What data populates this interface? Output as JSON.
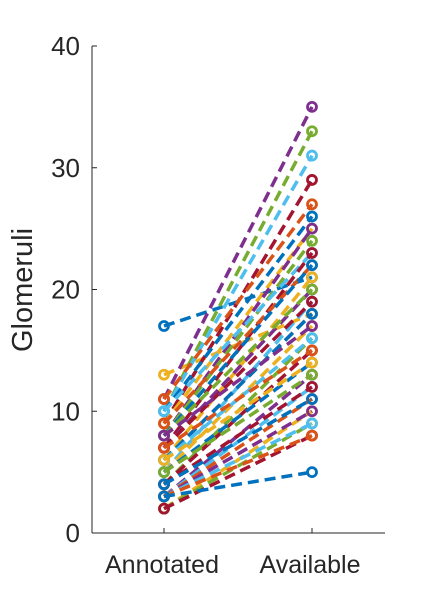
{
  "chart_data": {
    "type": "line",
    "categories": [
      "Annotated",
      "Available"
    ],
    "ylabel": "Glomeruli",
    "xlabel": "",
    "ylim": [
      0,
      40
    ],
    "yticks": [
      0,
      10,
      20,
      30,
      40
    ],
    "grid": false,
    "line_style": "dashed",
    "marker": "circle",
    "colors": [
      "#0072BD",
      "#EDB120",
      "#7E2F8E",
      "#77AC30",
      "#4DBEEE",
      "#A2142F",
      "#D95319"
    ],
    "pairs": [
      [
        17,
        21
      ],
      [
        13,
        18
      ],
      [
        11,
        35
      ],
      [
        10,
        33
      ],
      [
        10,
        31
      ],
      [
        9,
        29
      ],
      [
        11,
        27
      ],
      [
        10,
        26
      ],
      [
        9,
        25
      ],
      [
        8,
        25
      ],
      [
        8,
        24
      ],
      [
        10,
        23
      ],
      [
        7,
        23
      ],
      [
        9,
        22
      ],
      [
        8,
        22
      ],
      [
        6,
        21
      ],
      [
        7,
        20
      ],
      [
        8,
        20
      ],
      [
        5,
        19
      ],
      [
        7,
        19
      ],
      [
        6,
        18
      ],
      [
        6,
        18
      ],
      [
        5,
        17
      ],
      [
        8,
        17
      ],
      [
        4,
        16
      ],
      [
        6,
        16
      ],
      [
        4,
        15
      ],
      [
        7,
        15
      ],
      [
        5,
        14
      ],
      [
        6,
        14
      ],
      [
        3,
        13
      ],
      [
        5,
        13
      ],
      [
        3,
        12
      ],
      [
        4,
        12
      ],
      [
        3,
        11
      ],
      [
        4,
        11
      ],
      [
        2,
        10
      ],
      [
        3,
        10
      ],
      [
        2,
        9
      ],
      [
        3,
        9
      ],
      [
        2,
        8
      ],
      [
        3,
        8
      ],
      [
        3,
        5
      ]
    ]
  }
}
